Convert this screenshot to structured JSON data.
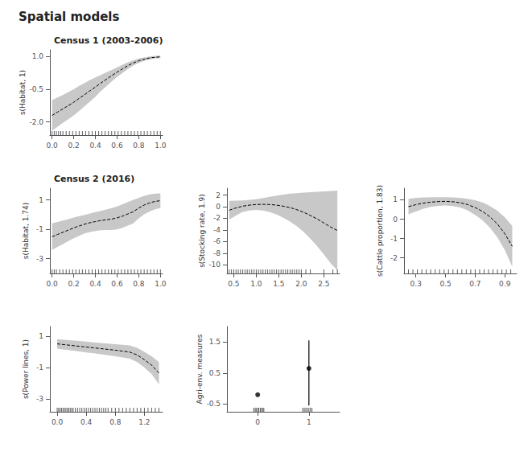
{
  "title": "Spatial models",
  "chart_data": [
    {
      "type": "line",
      "title": "Census 1 (2003-2006)",
      "ylabel": "s(Habitat, 1)",
      "grid": false,
      "xlim": [
        -0.02,
        1.02
      ],
      "ylim": [
        -2.6,
        1.3
      ],
      "xticks": [
        {
          "value": 0.0,
          "label": "0.0"
        },
        0.2,
        0.4,
        0.6,
        0.8,
        {
          "value": 1.0,
          "label": "1.0"
        }
      ],
      "yticks": [
        {
          "value": -2.0,
          "label": "-2.0"
        },
        -0.5,
        {
          "value": 1.0,
          "label": "1.0"
        }
      ],
      "x": [
        0.0,
        0.05,
        0.1,
        0.15,
        0.2,
        0.25,
        0.3,
        0.35,
        0.4,
        0.45,
        0.5,
        0.55,
        0.6,
        0.65,
        0.7,
        0.75,
        0.8,
        0.85,
        0.9,
        0.95,
        1.0
      ],
      "series": [
        {
          "type": "band",
          "color": "#c8c8c8",
          "upper": [
            -1.0,
            -0.88,
            -0.76,
            -0.63,
            -0.5,
            -0.35,
            -0.22,
            -0.08,
            0.04,
            0.15,
            0.27,
            0.38,
            0.5,
            0.62,
            0.73,
            0.82,
            0.9,
            0.95,
            1.0,
            1.02,
            1.04
          ],
          "lower": [
            -2.4,
            -2.22,
            -2.04,
            -1.87,
            -1.7,
            -1.5,
            -1.28,
            -1.06,
            -0.84,
            -0.59,
            -0.37,
            -0.14,
            0.06,
            0.24,
            0.43,
            0.58,
            0.7,
            0.79,
            0.86,
            0.9,
            0.92
          ]
        },
        {
          "color": "#000000",
          "line_style": "dashed",
          "values": [
            -1.7,
            -1.55,
            -1.4,
            -1.25,
            -1.1,
            -0.92,
            -0.75,
            -0.57,
            -0.4,
            -0.22,
            -0.05,
            0.12,
            0.28,
            0.43,
            0.58,
            0.7,
            0.8,
            0.87,
            0.93,
            0.96,
            0.98
          ]
        },
        {
          "type": "rug",
          "color": "#000000",
          "x": [
            0.0,
            0.02,
            0.04,
            0.06,
            0.08,
            0.1,
            0.13,
            0.16,
            0.19,
            0.22,
            0.25,
            0.28,
            0.31,
            0.34,
            0.37,
            0.4,
            0.43,
            0.46,
            0.49,
            0.52,
            0.55,
            0.58,
            0.61,
            0.64,
            0.67,
            0.7,
            0.73,
            0.76,
            0.79,
            0.82,
            0.85,
            0.88,
            0.91,
            0.94,
            0.97,
            1.0
          ]
        }
      ]
    },
    {
      "type": "line",
      "title": "Census 2 (2016)",
      "ylabel": "s(Habitat, 1.74)",
      "grid": false,
      "xlim": [
        -0.02,
        1.02
      ],
      "ylim": [
        -4.0,
        1.8
      ],
      "xticks": [
        {
          "value": 0.0,
          "label": "0.0"
        },
        0.2,
        0.4,
        0.6,
        0.8,
        {
          "value": 1.0,
          "label": "1.0"
        }
      ],
      "yticks": [
        -3,
        -1,
        1
      ],
      "x": [
        0.0,
        0.05,
        0.1,
        0.15,
        0.2,
        0.25,
        0.3,
        0.35,
        0.4,
        0.45,
        0.5,
        0.55,
        0.6,
        0.65,
        0.7,
        0.75,
        0.8,
        0.85,
        0.9,
        0.95,
        1.0
      ],
      "series": [
        {
          "type": "band",
          "color": "#c8c8c8",
          "upper": [
            -0.6,
            -0.5,
            -0.4,
            -0.3,
            -0.2,
            -0.1,
            -0.02,
            0.08,
            0.17,
            0.26,
            0.35,
            0.44,
            0.56,
            0.7,
            0.85,
            1.0,
            1.15,
            1.28,
            1.38,
            1.43,
            1.45
          ],
          "lower": [
            -2.4,
            -2.2,
            -2.0,
            -1.8,
            -1.6,
            -1.44,
            -1.28,
            -1.18,
            -1.11,
            -1.06,
            -1.05,
            -1.04,
            -1.0,
            -0.9,
            -0.75,
            -0.6,
            -0.25,
            0.02,
            0.22,
            0.37,
            0.45
          ]
        },
        {
          "color": "#000000",
          "line_style": "dashed",
          "values": [
            -1.5,
            -1.35,
            -1.2,
            -1.05,
            -0.9,
            -0.77,
            -0.65,
            -0.55,
            -0.47,
            -0.4,
            -0.35,
            -0.3,
            -0.22,
            -0.1,
            0.05,
            0.2,
            0.45,
            0.65,
            0.8,
            0.9,
            0.95
          ]
        },
        {
          "type": "rug",
          "color": "#000000",
          "x": [
            0.0,
            0.02,
            0.04,
            0.07,
            0.1,
            0.13,
            0.16,
            0.19,
            0.22,
            0.25,
            0.28,
            0.31,
            0.34,
            0.37,
            0.4,
            0.43,
            0.46,
            0.49,
            0.52,
            0.55,
            0.58,
            0.61,
            0.64,
            0.67,
            0.7,
            0.73,
            0.76,
            0.79,
            0.82,
            0.85,
            0.88,
            0.91,
            0.94,
            0.97,
            1.0
          ]
        }
      ]
    },
    {
      "type": "line",
      "ylabel": "s(Stocking rate, 1.9)",
      "grid": false,
      "xlim": [
        0.35,
        2.85
      ],
      "ylim": [
        -11.5,
        3.2
      ],
      "xticks": [
        0.5,
        {
          "value": 1.0,
          "label": "1.0"
        },
        1.5,
        {
          "value": 2.0,
          "label": "2.0"
        },
        2.5
      ],
      "yticks": [
        -10,
        -8,
        -6,
        -4,
        -2,
        0,
        2
      ],
      "x": [
        0.4,
        0.55,
        0.7,
        0.85,
        1.0,
        1.15,
        1.3,
        1.45,
        1.6,
        1.75,
        1.9,
        2.05,
        2.2,
        2.35,
        2.5,
        2.65,
        2.8
      ],
      "series": [
        {
          "type": "band",
          "color": "#c8c8c8",
          "upper": [
            1.0,
            1.05,
            1.1,
            1.2,
            1.3,
            1.5,
            1.7,
            1.9,
            2.1,
            2.25,
            2.35,
            2.42,
            2.5,
            2.58,
            2.65,
            2.72,
            2.8
          ],
          "lower": [
            -2.2,
            -1.5,
            -0.9,
            -0.64,
            -0.54,
            -0.66,
            -0.94,
            -1.34,
            -1.9,
            -2.55,
            -3.35,
            -4.32,
            -5.5,
            -6.78,
            -8.25,
            -9.72,
            -11.0
          ]
        },
        {
          "color": "#000000",
          "line_style": "dashed",
          "values": [
            -0.6,
            -0.2,
            0.1,
            0.28,
            0.38,
            0.42,
            0.38,
            0.28,
            0.1,
            -0.15,
            -0.5,
            -0.95,
            -1.5,
            -2.1,
            -2.8,
            -3.5,
            -4.1
          ]
        },
        {
          "type": "rug",
          "color": "#000000",
          "x": [
            0.4,
            0.45,
            0.5,
            0.55,
            0.6,
            0.65,
            0.7,
            0.75,
            0.8,
            0.85,
            0.9,
            0.95,
            1.0,
            1.05,
            1.1,
            1.15,
            1.2,
            1.25,
            1.3,
            1.35,
            1.4,
            1.45,
            1.5,
            1.55,
            1.6,
            1.65,
            1.7,
            1.75,
            1.8,
            1.85,
            1.9,
            1.95,
            2.0,
            2.1,
            2.2,
            2.5,
            2.7,
            2.8
          ]
        }
      ]
    },
    {
      "type": "line",
      "ylabel": "s(Cattle proportion, 1.83)",
      "grid": false,
      "xlim": [
        0.22,
        0.98
      ],
      "ylim": [
        -2.8,
        1.6
      ],
      "xticks": [
        0.3,
        0.5,
        0.7,
        0.9
      ],
      "yticks": [
        -2,
        -1,
        0,
        1
      ],
      "x": [
        0.25,
        0.3,
        0.35,
        0.4,
        0.45,
        0.5,
        0.55,
        0.6,
        0.65,
        0.7,
        0.75,
        0.8,
        0.85,
        0.9,
        0.95
      ],
      "series": [
        {
          "type": "band",
          "color": "#c8c8c8",
          "upper": [
            1.05,
            1.1,
            1.12,
            1.13,
            1.13,
            1.13,
            1.12,
            1.1,
            1.05,
            0.98,
            0.86,
            0.68,
            0.44,
            0.1,
            -0.35
          ],
          "lower": [
            0.25,
            0.4,
            0.54,
            0.63,
            0.69,
            0.71,
            0.68,
            0.6,
            0.45,
            0.22,
            -0.06,
            -0.44,
            -0.94,
            -1.6,
            -2.45
          ]
        },
        {
          "color": "#000000",
          "line_style": "dashed",
          "values": [
            0.65,
            0.75,
            0.83,
            0.88,
            0.91,
            0.92,
            0.9,
            0.85,
            0.75,
            0.6,
            0.4,
            0.12,
            -0.25,
            -0.75,
            -1.4
          ]
        },
        {
          "type": "rug",
          "color": "#000000",
          "x": [
            0.25,
            0.28,
            0.31,
            0.34,
            0.37,
            0.4,
            0.43,
            0.46,
            0.49,
            0.52,
            0.55,
            0.58,
            0.61,
            0.64,
            0.67,
            0.7,
            0.73,
            0.76,
            0.79,
            0.82,
            0.85,
            0.88,
            0.91,
            0.94
          ]
        }
      ]
    },
    {
      "type": "line",
      "ylabel": "s(Power lines, 1)",
      "grid": false,
      "xlim": [
        -0.1,
        1.45
      ],
      "ylim": [
        -3.8,
        1.6
      ],
      "xticks": [
        {
          "value": 0.0,
          "label": "0.0"
        },
        0.4,
        0.8,
        1.2
      ],
      "yticks": [
        -3,
        -1,
        1
      ],
      "x": [
        0.0,
        0.1,
        0.2,
        0.3,
        0.4,
        0.5,
        0.6,
        0.7,
        0.8,
        0.9,
        1.0,
        1.1,
        1.2,
        1.3,
        1.4
      ],
      "series": [
        {
          "type": "band",
          "color": "#c8c8c8",
          "upper": [
            0.8,
            0.76,
            0.72,
            0.68,
            0.64,
            0.6,
            0.56,
            0.52,
            0.48,
            0.44,
            0.4,
            0.25,
            0.0,
            -0.28,
            -0.65
          ],
          "lower": [
            0.2,
            0.14,
            0.08,
            0.02,
            -0.04,
            -0.1,
            -0.16,
            -0.22,
            -0.28,
            -0.36,
            -0.44,
            -0.65,
            -1.0,
            -1.42,
            -2.05
          ]
        },
        {
          "color": "#000000",
          "line_style": "dashed",
          "values": [
            0.5,
            0.45,
            0.4,
            0.35,
            0.3,
            0.25,
            0.2,
            0.15,
            0.1,
            0.04,
            -0.02,
            -0.2,
            -0.5,
            -0.85,
            -1.35
          ]
        },
        {
          "type": "rug",
          "color": "#000000",
          "x": [
            0.0,
            0.02,
            0.04,
            0.06,
            0.08,
            0.1,
            0.12,
            0.14,
            0.16,
            0.18,
            0.2,
            0.22,
            0.25,
            0.28,
            0.31,
            0.34,
            0.37,
            0.4,
            0.43,
            0.46,
            0.49,
            0.52,
            0.55,
            0.58,
            0.61,
            0.64,
            0.67,
            0.7,
            0.75,
            0.8,
            0.85,
            0.9,
            0.95,
            1.0,
            1.05,
            1.1,
            1.15,
            1.2,
            1.25,
            1.3,
            1.35,
            1.4
          ]
        }
      ]
    },
    {
      "type": "scatter",
      "ylabel": "Agri-env. measures",
      "grid": false,
      "xlim": [
        -0.6,
        1.6
      ],
      "ylim": [
        -0.75,
        2.0
      ],
      "xticks": [
        0,
        1
      ],
      "yticks": [
        -0.5,
        0.5,
        1.5
      ],
      "series": [
        {
          "color": "#000000",
          "marker": "circle",
          "x": [
            0,
            1
          ],
          "values": [
            -0.2,
            0.65
          ],
          "lower": [
            null,
            -0.55
          ],
          "upper": [
            null,
            1.55
          ]
        },
        {
          "type": "rug",
          "color": "#000000",
          "x": [
            -0.08,
            -0.05,
            -0.03,
            0.0,
            0.02,
            0.05,
            0.07,
            0.1,
            0.12
          ]
        },
        {
          "type": "rug",
          "color": "#000000",
          "x": [
            0.88,
            0.91,
            0.94,
            0.97,
            1.0,
            1.03,
            1.06
          ]
        }
      ]
    }
  ]
}
